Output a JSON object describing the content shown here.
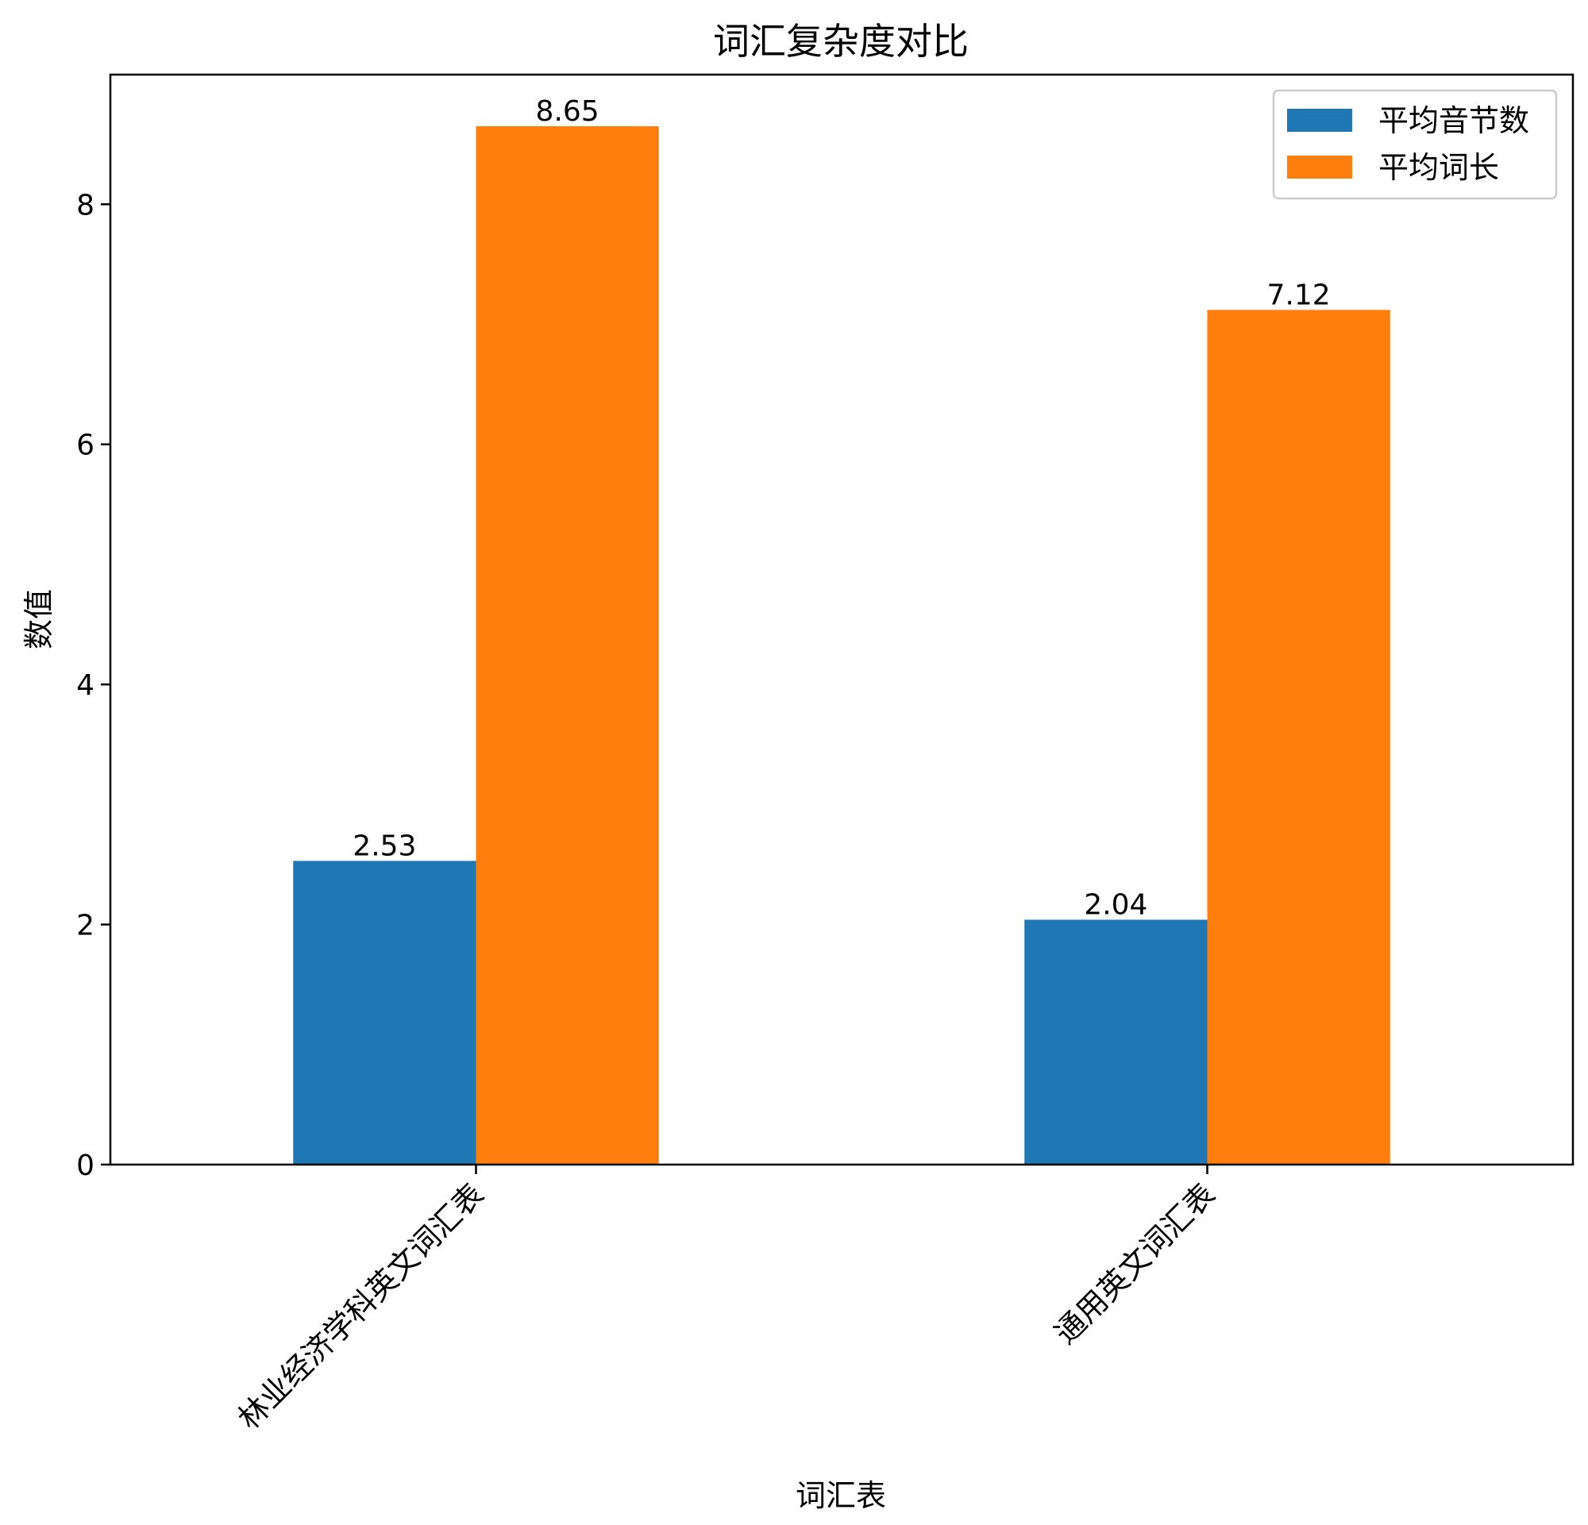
{
  "chart_data": {
    "type": "bar",
    "title": "词汇复杂度对比",
    "xlabel": "词汇表",
    "ylabel": "数值",
    "categories": [
      "林业经济学科英文词汇表",
      "通用英文词汇表"
    ],
    "series": [
      {
        "name": "平均音节数",
        "color": "#1f77b4",
        "values": [
          2.53,
          2.04
        ],
        "labels": [
          "2.53",
          "2.04"
        ]
      },
      {
        "name": "平均词长",
        "color": "#ff7f0e",
        "values": [
          8.65,
          7.12
        ],
        "labels": [
          "8.65",
          "7.12"
        ]
      }
    ],
    "ylim": [
      0,
      9.08
    ],
    "yticks": [
      0,
      2,
      4,
      6,
      8
    ],
    "ytick_labels": [
      "0",
      "2",
      "4",
      "6",
      "8"
    ],
    "grid": false,
    "legend_position": "top-right"
  }
}
